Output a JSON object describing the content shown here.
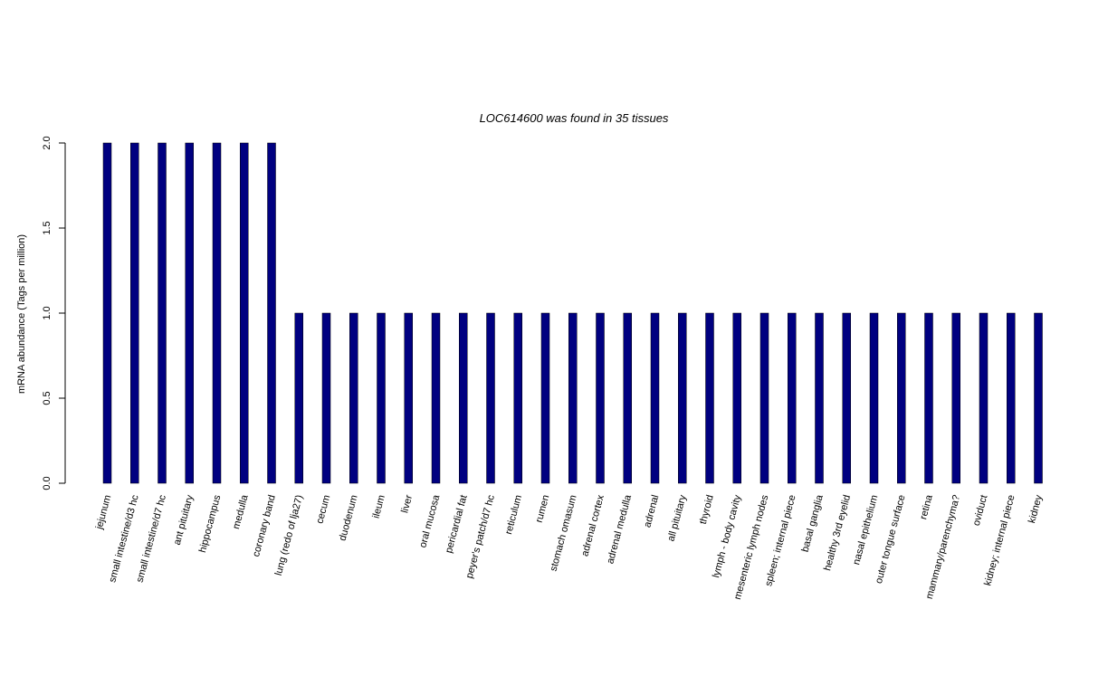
{
  "chart_data": {
    "type": "bar",
    "title": "LOC614600  was found in  35  tissues",
    "xlabel": "",
    "ylabel": "mRNA abundance (Tags per million)",
    "ylim": [
      0,
      2.0
    ],
    "yticks": [
      "0.0",
      "0.5",
      "1.0",
      "1.5",
      "2.0"
    ],
    "bar_color": "#000080",
    "categories": [
      "jejunum",
      "small intestine/d3 hc",
      "small intestine/d7 hc",
      "ant pituitary",
      "hippocampus",
      "medulla",
      "coronary band",
      "lung (redo of lja27)",
      "cecum",
      "duodenum",
      "ileum",
      "liver",
      "oral mucosa",
      "pericardial fat",
      "peyer's patch/d7 hc",
      "reticulum",
      "rumen",
      "stomach omasum",
      "adrenal cortex",
      "adrenal medulla",
      "adrenal",
      "all pituitary",
      "thyroid",
      "lymph - body cavity",
      "mesenteric lymph nodes",
      "spleen; internal piece",
      "basal ganglia",
      "healthy 3rd eyelid",
      "nasal epithelium",
      "outer tongue surface",
      "retina",
      "mammary/parenchyma?",
      "oviduct",
      "kidney; internal piece",
      "kidney"
    ],
    "values": [
      2,
      2,
      2,
      2,
      2,
      2,
      2,
      1,
      1,
      1,
      1,
      1,
      1,
      1,
      1,
      1,
      1,
      1,
      1,
      1,
      1,
      1,
      1,
      1,
      1,
      1,
      1,
      1,
      1,
      1,
      1,
      1,
      1,
      1,
      1
    ]
  }
}
